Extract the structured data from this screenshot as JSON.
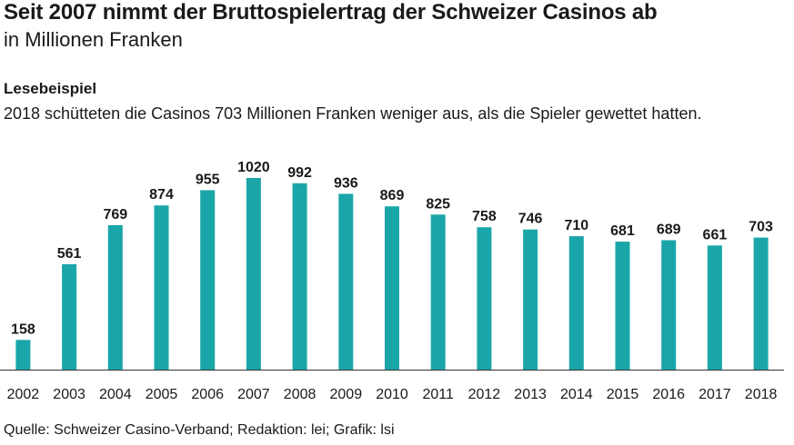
{
  "header": {
    "title": "Seit 2007 nimmt der Bruttospielertrag der Schweizer Casinos ab",
    "subtitle": "in Millionen Franken"
  },
  "example": {
    "heading": "Lesebeispiel",
    "text": "2018 schütteten die Casinos 703 Millionen Franken weniger aus, als die Spieler gewettet hatten."
  },
  "footer": {
    "source": "Quelle: Schweizer Casino-Verband; Redaktion: lei; Grafik: lsi"
  },
  "colors": {
    "bar": "#1aa6a8",
    "axis": "#333333"
  },
  "chart_data": {
    "type": "bar",
    "title": "Seit 2007 nimmt der Bruttospielertrag der Schweizer Casinos ab",
    "ylabel": "in Millionen Franken",
    "xlabel": "",
    "categories": [
      "2002",
      "2003",
      "2004",
      "2005",
      "2006",
      "2007",
      "2008",
      "2009",
      "2010",
      "2011",
      "2012",
      "2013",
      "2014",
      "2015",
      "2016",
      "2017",
      "2018"
    ],
    "values": [
      158,
      561,
      769,
      874,
      955,
      1020,
      992,
      936,
      869,
      825,
      758,
      746,
      710,
      681,
      689,
      661,
      703
    ],
    "ylim": [
      0,
      1020
    ],
    "grid": false,
    "data_labels": true
  }
}
